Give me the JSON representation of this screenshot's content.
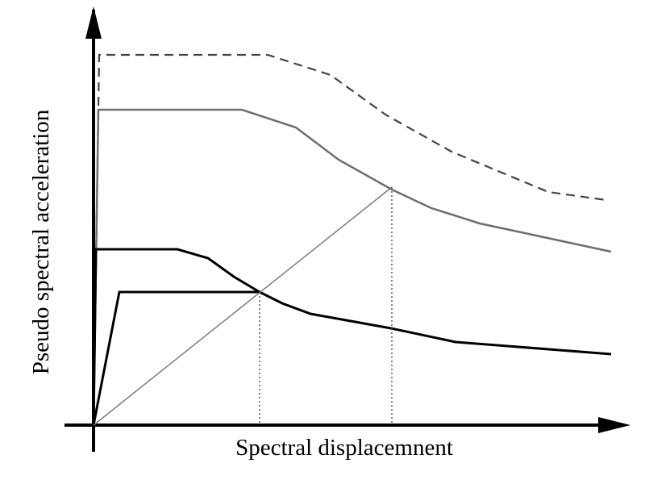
{
  "xlabel": "Spectral displacemnent",
  "ylabel": "Pseudo spectral acceleration",
  "colors": {
    "axis": "#000000",
    "capacity_curve": "#000000",
    "elastic_spectrum": "#6e6e6e",
    "dashed_spectrum": "#444444",
    "radial_line": "#7a7a7a",
    "guide_lines": "#555555"
  }
}
